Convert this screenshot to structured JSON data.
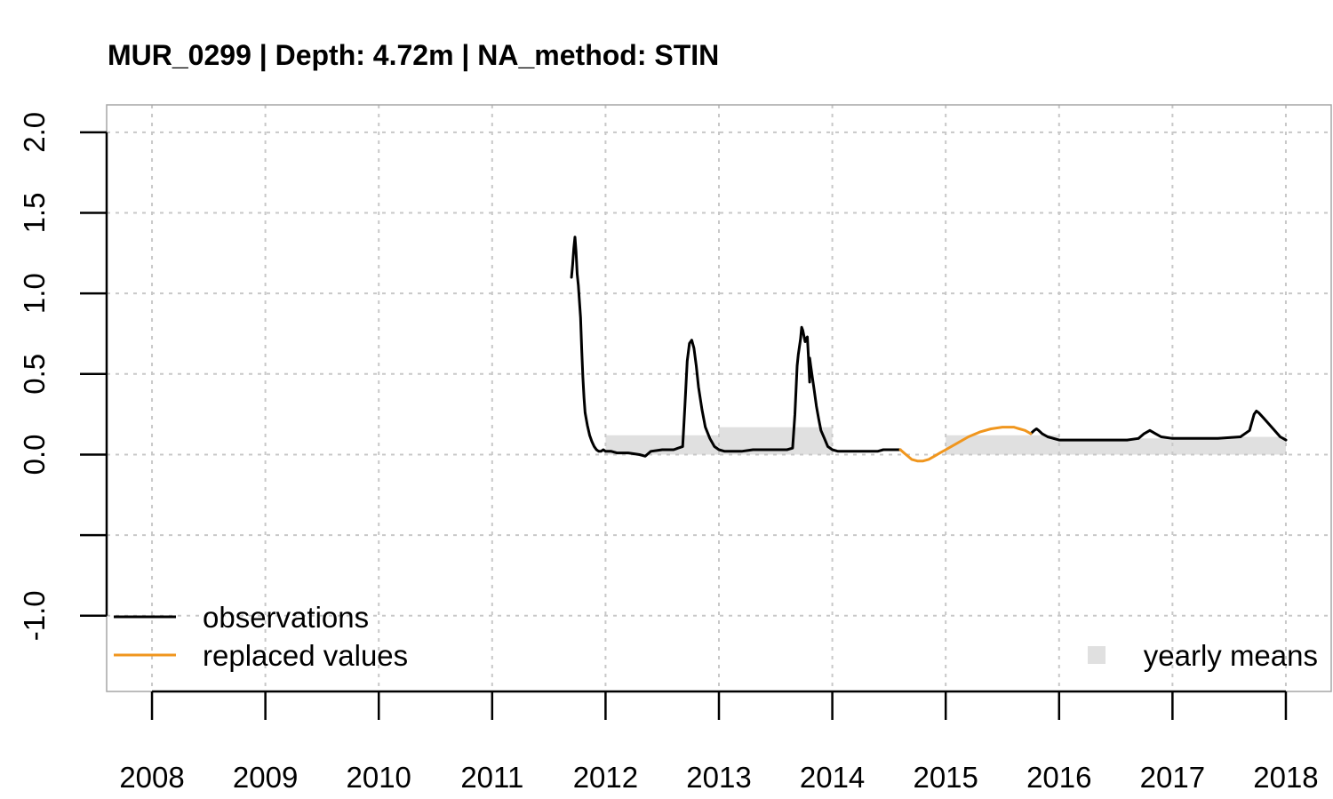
{
  "chart_data": {
    "type": "line",
    "title": "MUR_0299 | Depth: 4.72m | NA_method: STIN",
    "xlabel": "",
    "ylabel": "",
    "xlim": [
      2007.6,
      2018.4
    ],
    "ylim": [
      -1.47,
      2.17
    ],
    "x_ticks": [
      2008,
      2009,
      2010,
      2011,
      2012,
      2013,
      2014,
      2015,
      2016,
      2017,
      2018
    ],
    "x_tick_labels": [
      "2008",
      "2009",
      "2010",
      "2011",
      "2012",
      "2013",
      "2014",
      "2015",
      "2016",
      "2017",
      "2018"
    ],
    "y_ticks": [
      -1.0,
      -0.5,
      0.0,
      0.5,
      1.0,
      1.5,
      2.0
    ],
    "y_tick_labels": [
      "-1.0",
      "",
      "0.0",
      "0.5",
      "1.0",
      "1.5",
      "2.0"
    ],
    "grid": true,
    "legend": {
      "left_placement": "bottom-left",
      "right_placement": "bottom-right",
      "entries": [
        {
          "label": "observations",
          "color": "#000000",
          "kind": "line"
        },
        {
          "label": "replaced values",
          "color": "#f0961e",
          "kind": "line"
        },
        {
          "label": "yearly means",
          "color": "#e0e0e0",
          "kind": "box"
        }
      ]
    },
    "series": [
      {
        "name": "observations",
        "color": "#000000",
        "segments": [
          {
            "x": [
              2011.7,
              2011.71,
              2011.72,
              2011.73,
              2011.74,
              2011.75,
              2011.76,
              2011.78,
              2011.79,
              2011.8,
              2011.81,
              2011.82,
              2011.84,
              2011.86,
              2011.88,
              2011.9,
              2011.92,
              2011.94,
              2011.96,
              2011.98,
              2012.0,
              2012.05,
              2012.1,
              2012.2,
              2012.3,
              2012.35,
              2012.4,
              2012.5,
              2012.6,
              2012.68,
              2012.7,
              2012.72,
              2012.74,
              2012.76,
              2012.78,
              2012.8,
              2012.82,
              2012.85,
              2012.88,
              2012.92,
              2012.96,
              2013.0,
              2013.05,
              2013.1,
              2013.2,
              2013.3,
              2013.4,
              2013.5,
              2013.6,
              2013.65,
              2013.67,
              2013.69,
              2013.7,
              2013.72,
              2013.73,
              2013.74,
              2013.76,
              2013.77,
              2013.78,
              2013.79,
              2013.8,
              2013.8,
              2013.81,
              2013.82,
              2013.84,
              2013.86,
              2013.88,
              2013.9,
              2013.93,
              2013.96,
              2014.0,
              2014.05,
              2014.1,
              2014.2,
              2014.3,
              2014.4,
              2014.45,
              2014.5,
              2014.55,
              2014.6
            ],
            "y": [
              1.1,
              1.18,
              1.28,
              1.35,
              1.26,
              1.12,
              1.05,
              0.85,
              0.65,
              0.48,
              0.35,
              0.26,
              0.18,
              0.12,
              0.08,
              0.05,
              0.03,
              0.02,
              0.02,
              0.03,
              0.02,
              0.02,
              0.01,
              0.01,
              0.0,
              -0.01,
              0.02,
              0.03,
              0.03,
              0.05,
              0.3,
              0.58,
              0.69,
              0.71,
              0.66,
              0.55,
              0.42,
              0.28,
              0.17,
              0.1,
              0.05,
              0.03,
              0.02,
              0.02,
              0.02,
              0.03,
              0.03,
              0.03,
              0.03,
              0.04,
              0.25,
              0.55,
              0.62,
              0.72,
              0.79,
              0.77,
              0.7,
              0.72,
              0.73,
              0.6,
              0.45,
              0.6,
              0.55,
              0.5,
              0.4,
              0.3,
              0.22,
              0.15,
              0.1,
              0.05,
              0.03,
              0.02,
              0.02,
              0.02,
              0.02,
              0.02,
              0.03,
              0.03,
              0.03,
              0.03
            ]
          },
          {
            "x": [
              2015.75,
              2015.78,
              2015.8,
              2015.82,
              2015.85,
              2015.9,
              2016.0,
              2016.2,
              2016.4,
              2016.6,
              2016.7,
              2016.75,
              2016.8,
              2016.85,
              2016.9,
              2017.0,
              2017.2,
              2017.4,
              2017.6,
              2017.68,
              2017.72,
              2017.74,
              2017.76,
              2017.8,
              2017.85,
              2017.9,
              2017.95,
              2018.0
            ],
            "y": [
              0.13,
              0.15,
              0.16,
              0.15,
              0.13,
              0.11,
              0.09,
              0.09,
              0.09,
              0.09,
              0.1,
              0.13,
              0.15,
              0.13,
              0.11,
              0.1,
              0.1,
              0.1,
              0.11,
              0.15,
              0.25,
              0.27,
              0.26,
              0.23,
              0.19,
              0.15,
              0.11,
              0.09
            ]
          }
        ]
      },
      {
        "name": "replaced values",
        "color": "#f0961e",
        "segments": [
          {
            "x": [
              2014.6,
              2014.65,
              2014.7,
              2014.75,
              2014.8,
              2014.85,
              2014.9,
              2014.95,
              2015.0,
              2015.1,
              2015.2,
              2015.3,
              2015.4,
              2015.5,
              2015.55,
              2015.6,
              2015.65,
              2015.7,
              2015.75
            ],
            "y": [
              0.03,
              0.0,
              -0.03,
              -0.04,
              -0.04,
              -0.03,
              -0.01,
              0.01,
              0.03,
              0.07,
              0.11,
              0.14,
              0.16,
              0.17,
              0.17,
              0.17,
              0.16,
              0.15,
              0.13
            ]
          }
        ]
      },
      {
        "name": "yearly means",
        "color": "#e0e0e0",
        "bars": [
          {
            "x_start": 2012.0,
            "x_end": 2013.0,
            "value": 0.12
          },
          {
            "x_start": 2013.0,
            "x_end": 2014.0,
            "value": 0.17
          },
          {
            "x_start": 2015.0,
            "x_end": 2016.0,
            "value": 0.12
          },
          {
            "x_start": 2016.0,
            "x_end": 2017.0,
            "value": 0.1
          },
          {
            "x_start": 2017.0,
            "x_end": 2018.0,
            "value": 0.11
          }
        ]
      }
    ]
  }
}
